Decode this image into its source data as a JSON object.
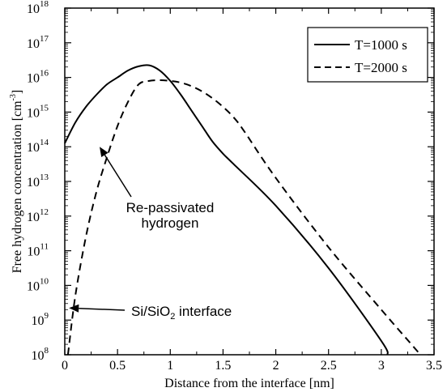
{
  "chart_data": {
    "type": "line",
    "xlabel": "Distance from the interface [nm]",
    "ylabel": "Free hydrogen concentration [cm",
    "ylabel_sup": "-3",
    "ylabel_close": "]",
    "xlim": [
      0,
      3.5
    ],
    "ylim_exponent": [
      8,
      18
    ],
    "y_scale": "log",
    "x_ticks": [
      "0",
      "0.5",
      "1",
      "1.5",
      "2",
      "2.5",
      "3",
      "3.5"
    ],
    "x_tick_values": [
      0,
      0.5,
      1,
      1.5,
      2,
      2.5,
      3,
      3.5
    ],
    "y_tick_base": "10",
    "y_tick_exponents": [
      "8",
      "9",
      "10",
      "11",
      "12",
      "13",
      "14",
      "15",
      "16",
      "17",
      "18"
    ],
    "grid": false,
    "legend_position": "top-right",
    "series": [
      {
        "name": "T=1000 s",
        "style": "solid",
        "x": [
          0.0,
          0.1,
          0.2,
          0.3,
          0.4,
          0.5,
          0.6,
          0.7,
          0.8,
          0.9,
          1.0,
          1.1,
          1.2,
          1.3,
          1.4,
          1.5,
          1.6,
          2.0,
          2.5,
          3.0,
          3.06
        ],
        "log10_y": [
          14.1,
          14.7,
          15.15,
          15.5,
          15.8,
          16.0,
          16.2,
          16.32,
          16.35,
          16.2,
          15.9,
          15.5,
          15.05,
          14.6,
          14.15,
          13.8,
          13.5,
          12.3,
          10.5,
          8.4,
          8.0
        ]
      },
      {
        "name": "T=2000 s",
        "style": "dashed",
        "x": [
          0.03,
          0.1,
          0.2,
          0.3,
          0.4,
          0.5,
          0.6,
          0.7,
          0.8,
          0.9,
          1.0,
          1.1,
          1.2,
          1.3,
          1.4,
          1.5,
          1.6,
          1.7,
          2.0,
          2.5,
          3.0,
          3.3,
          3.37
        ],
        "log10_y": [
          8.0,
          9.7,
          11.4,
          12.7,
          13.7,
          14.6,
          15.3,
          15.8,
          15.9,
          15.92,
          15.9,
          15.85,
          15.75,
          15.6,
          15.4,
          15.15,
          14.85,
          14.45,
          13.1,
          11.1,
          9.3,
          8.25,
          8.0
        ]
      }
    ],
    "annotations": [
      {
        "line1": "Re-passivated",
        "line2": "hydrogen",
        "arrow_to": [
          0.33,
          14.0
        ]
      },
      {
        "text_pre": "Si/SiO",
        "text_sub": "2",
        "text_post": " interface",
        "arrow_to": [
          0.04,
          9.35
        ]
      }
    ]
  }
}
